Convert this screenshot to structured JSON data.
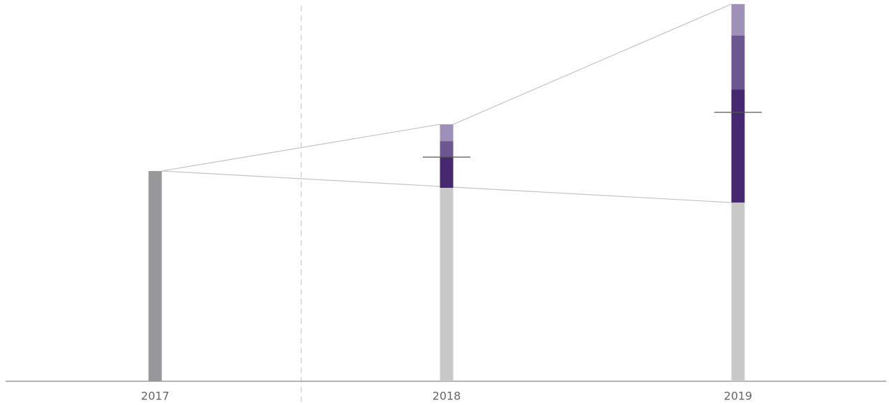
{
  "chart_data": {
    "type": "stacked-bar",
    "categories": [
      "2017",
      "2018",
      "2019"
    ],
    "series": [
      {
        "color": [
          "#98989a",
          "#c8c8c8",
          "#c8c8c8"
        ],
        "values": [
          100,
          92,
          85
        ]
      },
      {
        "color": "#452870",
        "values": [
          null,
          14.6,
          53.8
        ]
      },
      {
        "color": "#6d5790",
        "values": [
          null,
          7.6,
          25.6
        ]
      },
      {
        "color": "#9e90b8",
        "values": [
          null,
          8,
          15
        ]
      }
    ],
    "markers": [
      null,
      106.6,
      127.9
    ],
    "ylim": [
      0,
      180
    ]
  }
}
